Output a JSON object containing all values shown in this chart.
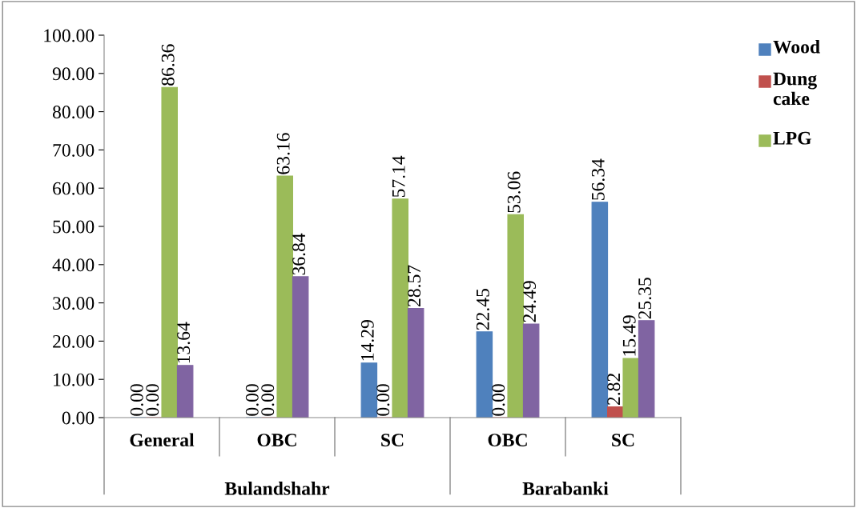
{
  "chart_data": {
    "type": "bar",
    "categories": [
      "General",
      "OBC",
      "SC",
      "OBC",
      "SC"
    ],
    "annotations": [
      "Bulandshahr",
      "Barabanki"
    ],
    "series": [
      {
        "name": "Wood",
        "color": "#4f81bd",
        "values": [
          0.0,
          0.0,
          14.29,
          22.45,
          56.34
        ],
        "value_labels": [
          "0.00",
          "0.00",
          "14.29",
          "22.45",
          "56.34"
        ]
      },
      {
        "name": "Dung cake",
        "color": "#c0504d",
        "values": [
          0.0,
          0.0,
          0.0,
          0.0,
          2.82
        ],
        "value_labels": [
          "0.00",
          "0.00",
          "0.00",
          "0.00",
          "2.82"
        ]
      },
      {
        "name": "LPG",
        "color": "#9bbb59",
        "values": [
          86.36,
          63.16,
          57.14,
          53.06,
          15.49
        ],
        "value_labels": [
          "86.36",
          "63.16",
          "57.14",
          "53.06",
          "15.49"
        ]
      },
      {
        "color": "#8064a2",
        "values": [
          13.64,
          36.84,
          28.57,
          24.49,
          25.35
        ],
        "value_labels": [
          "13.64",
          "36.84",
          "28.57",
          "24.49",
          "25.35"
        ]
      }
    ],
    "ylim": [
      0,
      100
    ],
    "yticks": [
      {
        "value": 0,
        "label": "0.00"
      },
      {
        "value": 10,
        "label": "10.00"
      },
      {
        "value": 20,
        "label": "20.00"
      },
      {
        "value": 30,
        "label": "30.00"
      },
      {
        "value": 40,
        "label": "40.00"
      },
      {
        "value": 50,
        "label": "50.00"
      },
      {
        "value": 60,
        "label": "60.00"
      },
      {
        "value": 70,
        "label": "70.00"
      },
      {
        "value": 80,
        "label": "80.00"
      },
      {
        "value": 90,
        "label": "90.00"
      },
      {
        "value": 100,
        "label": "100.00"
      }
    ],
    "grid": false,
    "legend": "right"
  }
}
